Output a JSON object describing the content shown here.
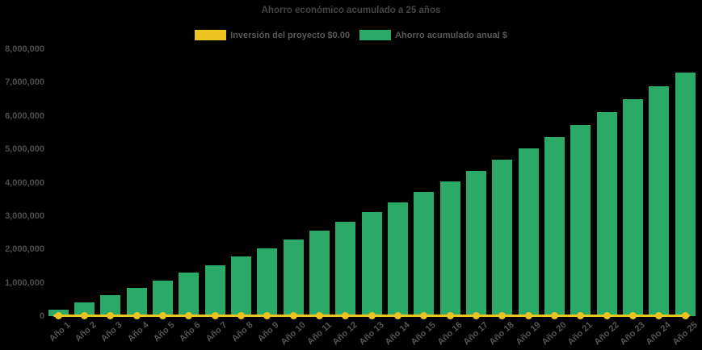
{
  "title": "Ahorro económico acumulado a 25 años",
  "legend": {
    "items": [
      {
        "label": "Inversión del proyecto $0.00",
        "color": "#EDC420"
      },
      {
        "label": "Ahorro acumulado anual $",
        "color": "#2BA966"
      }
    ]
  },
  "colors": {
    "background": "#000000",
    "bar_green": "#2BA966",
    "line_yellow": "#EDC420",
    "title_text": "#454545",
    "axis_text": "#4d4d4d",
    "legend_text": "#585858"
  },
  "chart_data": {
    "type": "bar",
    "title": "Ahorro económico acumulado a 25 años",
    "categories": [
      "Año 1",
      "Año 2",
      "Año 3",
      "Año 4",
      "Año 5",
      "Año 6",
      "Año 7",
      "Año 8",
      "Año 9",
      "Año 10",
      "Año 11",
      "Año 12",
      "Año 13",
      "Año 14",
      "Año 15",
      "Año 16",
      "Año 17",
      "Año 18",
      "Año 19",
      "Año 20",
      "Año 21",
      "Año 22",
      "Año 23",
      "Año 24",
      "Año 25"
    ],
    "series": [
      {
        "name": "Ahorro acumulado anual $",
        "type": "bar",
        "color": "#2BA966",
        "values": [
          200000,
          406000,
          618000,
          837000,
          1062000,
          1294000,
          1532000,
          1778000,
          2032000,
          2293000,
          2562000,
          2838000,
          3124000,
          3417000,
          3720000,
          4031000,
          4352000,
          4683000,
          5023000,
          5374000,
          5735000,
          6107000,
          6491000,
          6885000,
          7292000
        ]
      },
      {
        "name": "Inversión del proyecto $0.00",
        "type": "line",
        "color": "#EDC420",
        "values": [
          0,
          0,
          0,
          0,
          0,
          0,
          0,
          0,
          0,
          0,
          0,
          0,
          0,
          0,
          0,
          0,
          0,
          0,
          0,
          0,
          0,
          0,
          0,
          0,
          0
        ]
      }
    ],
    "xlabel": "",
    "ylabel": "",
    "ylim": [
      0,
      8000000
    ],
    "y_ticks": [
      0,
      1000000,
      2000000,
      3000000,
      4000000,
      5000000,
      6000000,
      7000000,
      8000000
    ],
    "y_tick_labels": [
      "0",
      "1,000,000",
      "2,000,000",
      "3,000,000",
      "4,000,000",
      "5,000,000",
      "6,000,000",
      "7,000,000",
      "8,000,000"
    ],
    "grid": false,
    "legend_position": "top-center"
  }
}
